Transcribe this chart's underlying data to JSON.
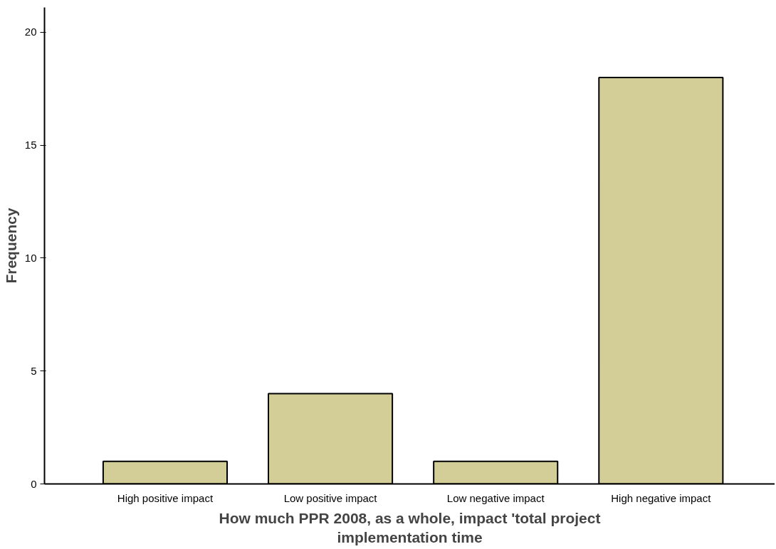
{
  "chart_data": {
    "type": "bar",
    "xlabel": "How much PPR 2008, as a whole, impact 'total project implementation time",
    "ylabel": "Frequency",
    "categories": [
      "High positive impact",
      "Low positive impact",
      "Low negative impact",
      "High negative impact"
    ],
    "values": [
      1,
      4,
      1,
      18
    ],
    "color": "#d3ce97",
    "ylim": [
      0,
      21.1
    ],
    "yticks": [
      0,
      5,
      10,
      15,
      20
    ],
    "grid": false
  }
}
